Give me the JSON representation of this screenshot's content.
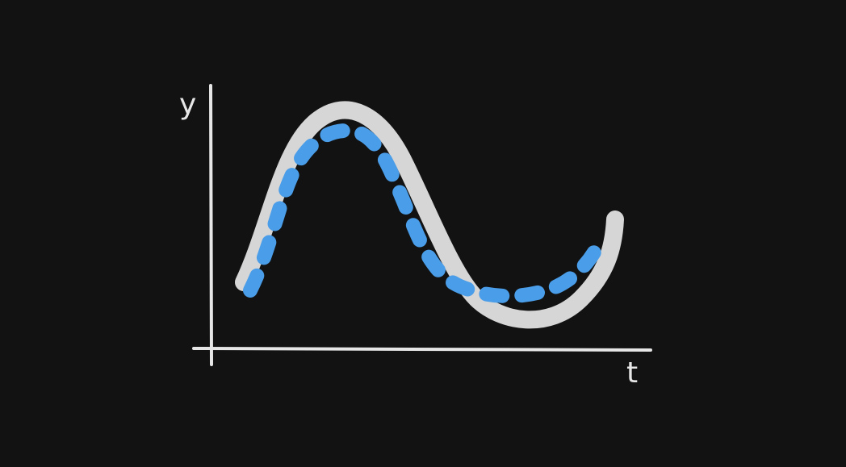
{
  "diagram": {
    "axes": {
      "y_label": "y",
      "x_label": "t"
    },
    "curves": [
      {
        "name": "reference-curve",
        "style": "thick-solid",
        "color": "#d6d6d6"
      },
      {
        "name": "estimate-curve",
        "style": "dashed",
        "color": "#4a9de8"
      }
    ],
    "colors": {
      "background": "#121212",
      "axis": "#e6e6e6"
    }
  }
}
